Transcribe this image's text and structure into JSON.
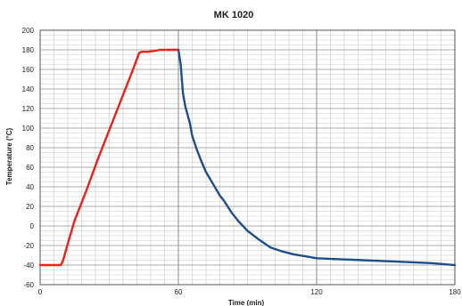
{
  "chart_data": {
    "type": "line",
    "title": "MK 1020",
    "xlabel": "Time (min)",
    "ylabel": "Temperature (°C)",
    "xlim": [
      0,
      180
    ],
    "ylim": [
      -60,
      200
    ],
    "x_ticks": [
      0,
      60,
      120,
      180
    ],
    "y_ticks": [
      -60,
      -40,
      -20,
      0,
      20,
      40,
      60,
      80,
      100,
      120,
      140,
      160,
      180,
      200
    ],
    "grid": true,
    "legend": "none",
    "series": [
      {
        "color": "#e8231c",
        "x": [
          0,
          9,
          10,
          12,
          15,
          20,
          25,
          30,
          35,
          40,
          43,
          44,
          47,
          50,
          52,
          58,
          60
        ],
        "values": [
          -40,
          -40,
          -35,
          -18,
          6,
          36,
          68,
          98,
          128,
          158,
          177,
          178,
          178,
          179,
          180,
          180,
          180
        ]
      },
      {
        "color": "#1f4e8c",
        "x": [
          60,
          61,
          62,
          63,
          65,
          66,
          68,
          70,
          72,
          75,
          78,
          80,
          83,
          86,
          90,
          95,
          100,
          105,
          110,
          115,
          120,
          130,
          140,
          150,
          160,
          170,
          175,
          180
        ],
        "values": [
          180,
          165,
          135,
          122,
          105,
          92,
          78,
          66,
          55,
          43,
          31,
          25,
          14,
          5,
          -5,
          -14,
          -22,
          -26,
          -29,
          -31,
          -33,
          -34,
          -35,
          -36,
          -37,
          -38,
          -39,
          -40
        ]
      }
    ]
  }
}
